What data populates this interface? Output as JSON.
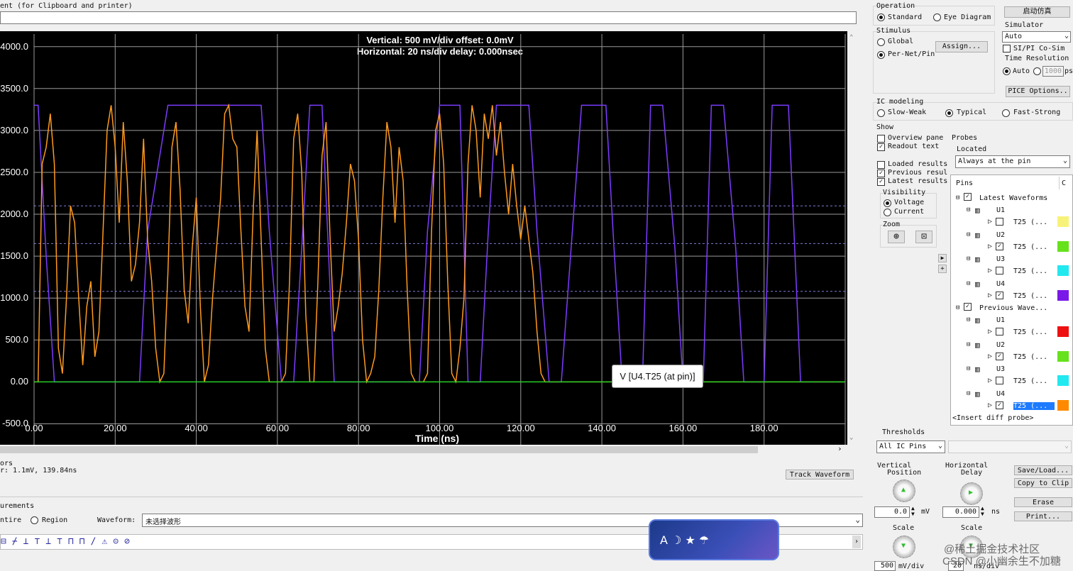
{
  "comment_label": "ent (for Clipboard and printer)",
  "chart": {
    "header_vertical": "Vertical: 500 mV/div  offset: 0.0mV",
    "header_horizontal": "Horizontal: 20 ns/div  delay: 0.000nsec",
    "tooltip": "V [U4.T25 (at pin)]",
    "colors": {
      "background": "#000000",
      "orange": "#ff9a1e",
      "purple": "#7c3cff",
      "grid": "#9a9a9a",
      "threshold": "#7f7fd8"
    }
  },
  "chart_data": {
    "type": "line",
    "xlabel": "Time (ns)",
    "ylabel": "",
    "x_ticks": [
      "0.00",
      "20.00",
      "40.00",
      "60.00",
      "80.00",
      "100.00",
      "120.00",
      "140.00",
      "160.00",
      "180.00"
    ],
    "y_ticks": [
      "4000.0",
      "3500.0",
      "3000.0",
      "2500.0",
      "2000.0",
      "1500.0",
      "1000.0",
      "500.0",
      "0.00",
      "-500.0"
    ],
    "xlim": [
      0,
      200
    ],
    "ylim": [
      -750,
      4150
    ],
    "grid": true,
    "thresholds_mV": [
      2100,
      1650,
      1080
    ],
    "series": [
      {
        "color": "#7c3cff",
        "x": [
          0,
          1,
          3,
          5,
          26,
          28,
          33,
          56,
          58,
          61,
          64,
          66,
          68,
          71,
          74,
          95,
          97,
          100,
          105,
          107,
          110,
          112,
          114,
          122,
          124,
          127,
          130,
          135,
          137,
          141,
          143,
          145,
          150,
          152,
          155,
          158,
          160,
          165,
          167,
          170,
          173,
          175,
          180,
          182,
          186,
          189,
          200
        ],
        "y": [
          3300,
          3300,
          1500,
          0,
          0,
          1800,
          3300,
          3300,
          1800,
          0,
          0,
          1600,
          3300,
          3300,
          0,
          0,
          1800,
          3300,
          3300,
          0,
          0,
          1800,
          3300,
          3300,
          1800,
          0,
          0,
          3300,
          3300,
          3300,
          1600,
          0,
          0,
          3300,
          3300,
          1600,
          0,
          0,
          3300,
          3300,
          1600,
          0,
          0,
          3300,
          3300,
          0,
          0
        ]
      },
      {
        "color": "#ff9a1e",
        "x": [
          0,
          1,
          2,
          3,
          4,
          5,
          6,
          7,
          8,
          9,
          10,
          11,
          12,
          13,
          14,
          15,
          16,
          17,
          18,
          19,
          20,
          21,
          22,
          23,
          24,
          25,
          26,
          27,
          28,
          29,
          30,
          31,
          32,
          33,
          34,
          35,
          36,
          37,
          38,
          39,
          40,
          41,
          42,
          43,
          44,
          45,
          46,
          47,
          48,
          49,
          50,
          51,
          52,
          53,
          54,
          55,
          56,
          57,
          58,
          59,
          60,
          61,
          62,
          63,
          64,
          65,
          66,
          67,
          68,
          69,
          70,
          71,
          72,
          73,
          74,
          75,
          76,
          77,
          78,
          79,
          80,
          81,
          82,
          83,
          84,
          85,
          86,
          87,
          88,
          89,
          90,
          91,
          92,
          93,
          94,
          95,
          96,
          97,
          98,
          99,
          100,
          101,
          102,
          103,
          104,
          105,
          106,
          107,
          108,
          109,
          110,
          111,
          112,
          113,
          114,
          115,
          116,
          117,
          118,
          119,
          120,
          121,
          122,
          123,
          124,
          125,
          126,
          127,
          128,
          129,
          130,
          200
        ],
        "y": [
          0,
          0,
          2600,
          2800,
          3200,
          2600,
          400,
          100,
          1000,
          2100,
          1900,
          1000,
          200,
          900,
          1200,
          300,
          600,
          1800,
          3000,
          3300,
          2800,
          1900,
          3100,
          2400,
          1200,
          1400,
          1900,
          2900,
          1700,
          1200,
          400,
          0,
          100,
          1300,
          2800,
          3100,
          2300,
          1100,
          700,
          1600,
          2200,
          900,
          0,
          200,
          1000,
          1600,
          2200,
          3200,
          3300,
          2900,
          2800,
          1800,
          900,
          600,
          2000,
          3000,
          1700,
          400,
          0,
          0,
          0,
          0,
          100,
          1200,
          2900,
          3200,
          2500,
          800,
          0,
          0,
          1200,
          2700,
          3100,
          1700,
          600,
          900,
          1300,
          1900,
          2600,
          2400,
          1700,
          500,
          0,
          100,
          300,
          1100,
          2200,
          3100,
          2800,
          1900,
          2800,
          2400,
          1100,
          100,
          0,
          0,
          0,
          100,
          1800,
          3000,
          3200,
          2600,
          1200,
          100,
          0,
          400,
          1000,
          2600,
          3300,
          3000,
          2200,
          3200,
          2900,
          3300,
          2700,
          3100,
          2500,
          2000,
          2600,
          2100,
          1700,
          2100,
          1700,
          1300,
          600,
          100,
          0,
          0,
          0,
          0,
          0,
          0
        ]
      },
      {
        "color": "#22cc22",
        "x": [
          0,
          200
        ],
        "y": [
          0,
          0
        ]
      }
    ]
  },
  "bottom": {
    "cursors_label": "ors",
    "cursor_readout": "r: 1.1mV,  139.84ns",
    "track_waveform": "Track Waveform",
    "measurements_label": "urements",
    "entire_label": "ntire",
    "region_label": "Region",
    "waveform_label": "Waveform:",
    "waveform_value": "未选择波形"
  },
  "operation": {
    "title": "Operation",
    "standard": "Standard",
    "eye": "Eye Diagram",
    "start_button": "启动仿真",
    "simulator_label": "Simulator",
    "simulator_value": "Auto",
    "cosim": "SI/PI Co-Sim",
    "time_res": "Time Resolution",
    "auto": "Auto",
    "ps_value": "1000",
    "ps_unit": "ps",
    "pice_button": "PICE Options.."
  },
  "stimulus": {
    "title": "Stimulus",
    "global": "Global",
    "pernet": "Per-Net/Pin",
    "assign": "Assign..."
  },
  "ic_modeling": {
    "title": "IC modeling",
    "slow": "Slow-Weak",
    "typical": "Typical",
    "fast": "Fast-Strong"
  },
  "show": {
    "title": "Show",
    "overview": "Overview pane",
    "readout": "Readout text",
    "loaded": "Loaded results",
    "previous": "Previous resul",
    "latest": "Latest results",
    "visibility": "Visibility",
    "voltage": "Voltage",
    "current": "Current",
    "zoom": "Zoom"
  },
  "probes": {
    "title": "Probes",
    "located": "Located",
    "located_value": "Always at the pin",
    "pins_header": "Pins",
    "col_c": "C",
    "latest_group": "Latest Waveforms",
    "previous_group": "Previous Wave...",
    "latest": [
      {
        "part": "U1",
        "pin": "T25 (...",
        "color": "#f7f37a"
      },
      {
        "part": "U2",
        "pin": "T25 (...",
        "color": "#66e21c"
      },
      {
        "part": "U3",
        "pin": "T25 (...",
        "color": "#22e8f0"
      },
      {
        "part": "U4",
        "pin": "T25 (...",
        "color": "#7a18e8"
      }
    ],
    "previous": [
      {
        "part": "U1",
        "pin": "T25 (...",
        "color": "#ee1111"
      },
      {
        "part": "U2",
        "pin": "T25 (...",
        "color": "#66e21c"
      },
      {
        "part": "U3",
        "pin": "T25 (...",
        "color": "#22e8f0"
      },
      {
        "part": "U4",
        "pin": "T25 (...",
        "color": "#ff8a00"
      }
    ],
    "insert": "<Insert diff probe>"
  },
  "thresholds": {
    "title": "Thresholds",
    "value": "All IC Pins"
  },
  "knobs": {
    "vpos_title_1": "Vertical",
    "vpos_title_2": "Position",
    "vpos_value": "0.0",
    "vpos_unit": "mV",
    "hdelay_title_1": "Horizontal",
    "hdelay_title_2": "Delay",
    "hdelay_value": "0.000",
    "hdelay_unit": "ns",
    "vscale_title": "Scale",
    "vscale_value": "500",
    "vscale_unit": "mV/div",
    "hscale_title": "Scale",
    "hscale_value": "20",
    "hscale_unit": "ns/div"
  },
  "actions": {
    "save": "Save/Load...",
    "copy": "Copy to Clip",
    "erase": "Erase",
    "print": "Print..."
  },
  "watermark": "CSDN @小幽余生不加糖",
  "watermark2": "@稀土掘金技术社区"
}
